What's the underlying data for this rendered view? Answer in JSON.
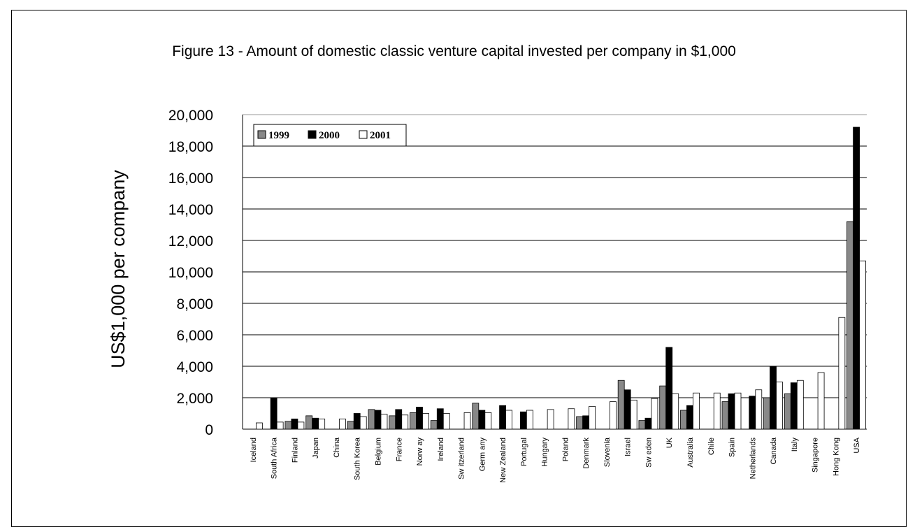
{
  "chart_data": {
    "type": "bar",
    "title": "Figure 13 - Amount of domestic classic venture capital invested per company in $1,000",
    "xlabel": "",
    "ylabel": "US$1,000 per company",
    "ylim": [
      0,
      20000
    ],
    "yticks": [
      "0",
      "2,000",
      "4,000",
      "6,000",
      "8,000",
      "10,000",
      "12,000",
      "14,000",
      "16,000",
      "18,000",
      "20,000"
    ],
    "grid": true,
    "legend_position": "top-left",
    "categories": [
      "Iceland",
      "South Africa",
      "Finland",
      "Japan",
      "China",
      "South Korea",
      "Belgium",
      "France",
      "Norw ay",
      "Ireland",
      "Sw itzerland",
      "Germ any",
      "New Zealand",
      "Portugal",
      "Hungary",
      "Poland",
      "Denmark",
      "Slovenia",
      "Israel",
      "Sw eden",
      "UK",
      "Australia",
      "Chile",
      "Spain",
      "Netherlands",
      "Canada",
      "Italy",
      "Singapore",
      "Hong Kong",
      "USA"
    ],
    "series": [
      {
        "name": "1999",
        "color": "#888888",
        "values": [
          null,
          null,
          500,
          850,
          null,
          500,
          1250,
          850,
          1050,
          550,
          null,
          1650,
          null,
          null,
          null,
          null,
          800,
          null,
          3100,
          550,
          2750,
          1200,
          null,
          1750,
          null,
          2000,
          2250,
          null,
          null,
          13200
        ]
      },
      {
        "name": "2000",
        "color": "#000000",
        "values": [
          null,
          2000,
          650,
          700,
          null,
          1000,
          1200,
          1250,
          1400,
          1300,
          null,
          1200,
          1500,
          1100,
          null,
          null,
          850,
          null,
          2500,
          700,
          5200,
          1500,
          null,
          2250,
          2100,
          4000,
          2950,
          null,
          null,
          19200
        ]
      },
      {
        "name": "2001",
        "color": "#ffffff",
        "values": [
          400,
          450,
          450,
          650,
          650,
          800,
          950,
          900,
          1000,
          1000,
          1050,
          1050,
          1200,
          1200,
          1250,
          1300,
          1450,
          1750,
          1850,
          1950,
          2250,
          2300,
          2300,
          2300,
          2500,
          3000,
          3100,
          3600,
          7100,
          10700
        ]
      }
    ]
  }
}
